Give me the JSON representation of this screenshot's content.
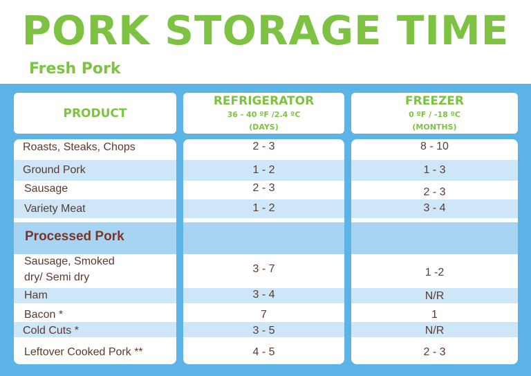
{
  "title": "PORK STORAGE TIME",
  "subtitle": "Fresh Pork",
  "headers": {
    "product": "PRODUCT",
    "refrigerator": {
      "title": "REFRIGERATOR",
      "temp": "36 - 40 ºF /2.4 ºC",
      "unit": "(DAYS)"
    },
    "freezer": {
      "title": "FREEZER",
      "temp": "0 ºF / -18 ºC",
      "unit": "(MONTHS)"
    }
  },
  "fresh_rows": [
    {
      "product": "Roasts, Steaks, Chops",
      "refrigerator": "2 - 3",
      "freezer": "8 - 10"
    },
    {
      "product": "Ground Pork",
      "refrigerator": "1 - 2",
      "freezer": "1 - 3"
    },
    {
      "product": "Sausage",
      "refrigerator": "2 - 3",
      "freezer": "2 - 3"
    },
    {
      "product": "Variety Meat",
      "refrigerator": "1 - 2",
      "freezer": "3 - 4"
    }
  ],
  "processed_label": "Processed Pork",
  "processed_rows": [
    {
      "product_line1": "Sausage, Smoked",
      "product_line2": "dry/ Semi dry",
      "refrigerator": "3 - 7",
      "freezer": "1 -2"
    },
    {
      "product": "Ham",
      "refrigerator": "3 - 4",
      "freezer": "N/R"
    },
    {
      "product": "Bacon *",
      "refrigerator": "7",
      "freezer": "1"
    },
    {
      "product": "Cold Cuts *",
      "refrigerator": "3 - 5",
      "freezer": "N/R"
    },
    {
      "product": "Leftover Cooked Pork **",
      "refrigerator": "4 - 5",
      "freezer": "2 - 3"
    }
  ]
}
